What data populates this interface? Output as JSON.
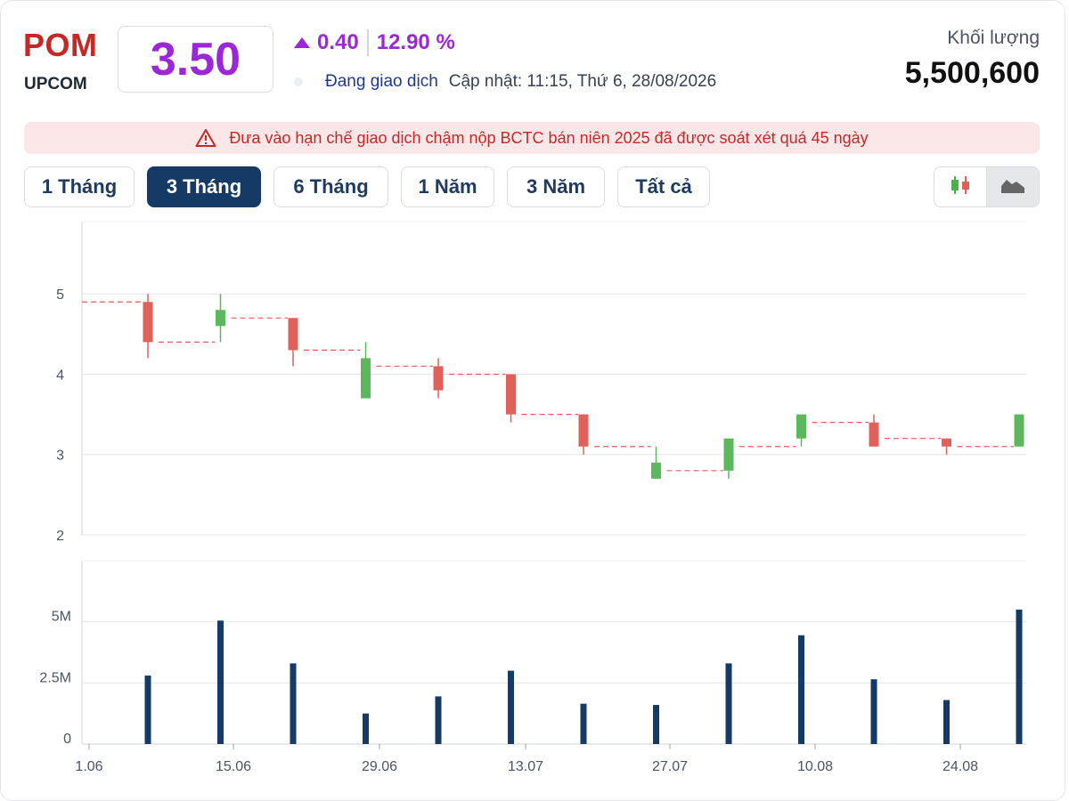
{
  "header": {
    "symbol": "POM",
    "exchange": "UPCOM",
    "price": "3.50",
    "change": "0.40",
    "change_pct": "12.90 %",
    "status": "Đang giao dịch",
    "updated": "Cập nhật: 11:15, Thứ 6, 28/08/2026",
    "volume_label": "Khối lượng",
    "volume": "5,500,600"
  },
  "alert": {
    "text": "Đưa vào hạn chế giao dịch chậm nộp BCTC bán niên 2025 đã được soát xét quá 45 ngày"
  },
  "tabs": [
    {
      "label": "1 Tháng",
      "active": false
    },
    {
      "label": "3 Tháng",
      "active": true
    },
    {
      "label": "6 Tháng",
      "active": false
    },
    {
      "label": "1 Năm",
      "active": false
    },
    {
      "label": "3 Năm",
      "active": false
    },
    {
      "label": "Tất cả",
      "active": false
    }
  ],
  "colors": {
    "up": "#5cb85c",
    "down": "#e0605a",
    "volume": "#163a66",
    "accent": "#9b27d6",
    "brand": "#c62828"
  },
  "icons": {
    "candle_toggle": "candlestick-icon",
    "area_toggle": "area-chart-icon",
    "warning": "warning-triangle-icon"
  },
  "chart_data": {
    "type": "candlestick",
    "x_ticks": [
      "1.06",
      "15.06",
      "29.06",
      "13.07",
      "27.07",
      "10.08",
      "24.08"
    ],
    "price_axis": {
      "ticks": [
        "2",
        "3",
        "4",
        "5"
      ],
      "range": [
        2,
        5.9
      ]
    },
    "volume_axis": {
      "ticks": [
        "0",
        "2.5M",
        "5M"
      ],
      "range": [
        0,
        7500000
      ]
    },
    "candles": [
      {
        "date": "08.06",
        "open": 4.9,
        "high": 5.0,
        "low": 4.2,
        "close": 4.4,
        "volume": 2800000
      },
      {
        "date": "15.06",
        "open": 4.6,
        "high": 5.0,
        "low": 4.4,
        "close": 4.8,
        "volume": 5050000
      },
      {
        "date": "22.06",
        "open": 4.7,
        "high": 4.7,
        "low": 4.1,
        "close": 4.3,
        "volume": 3300000
      },
      {
        "date": "29.06",
        "open": 3.7,
        "high": 4.4,
        "low": 3.7,
        "close": 4.2,
        "volume": 1250000
      },
      {
        "date": "06.07",
        "open": 4.1,
        "high": 4.2,
        "low": 3.7,
        "close": 3.8,
        "volume": 1950000
      },
      {
        "date": "13.07",
        "open": 4.0,
        "high": 4.0,
        "low": 3.4,
        "close": 3.5,
        "volume": 3000000
      },
      {
        "date": "20.07",
        "open": 3.5,
        "high": 3.5,
        "low": 3.0,
        "close": 3.1,
        "volume": 1650000
      },
      {
        "date": "27.07",
        "open": 2.7,
        "high": 3.1,
        "low": 2.7,
        "close": 2.9,
        "volume": 1600000
      },
      {
        "date": "03.08",
        "open": 2.8,
        "high": 3.2,
        "low": 2.7,
        "close": 3.2,
        "volume": 3300000
      },
      {
        "date": "10.08",
        "open": 3.2,
        "high": 3.5,
        "low": 3.1,
        "close": 3.5,
        "volume": 4450000
      },
      {
        "date": "17.08",
        "open": 3.4,
        "high": 3.5,
        "low": 3.1,
        "close": 3.1,
        "volume": 2650000
      },
      {
        "date": "24.08",
        "open": 3.2,
        "high": 3.2,
        "low": 3.0,
        "close": 3.1,
        "volume": 1800000
      },
      {
        "date": "28.08",
        "open": 3.1,
        "high": 3.5,
        "low": 3.1,
        "close": 3.5,
        "volume": 5500600
      }
    ],
    "reference_levels": [
      4.9,
      4.4,
      4.7,
      4.3,
      4.1,
      4.0,
      3.5,
      3.1,
      2.8,
      3.1,
      3.4,
      3.2,
      3.1
    ]
  }
}
